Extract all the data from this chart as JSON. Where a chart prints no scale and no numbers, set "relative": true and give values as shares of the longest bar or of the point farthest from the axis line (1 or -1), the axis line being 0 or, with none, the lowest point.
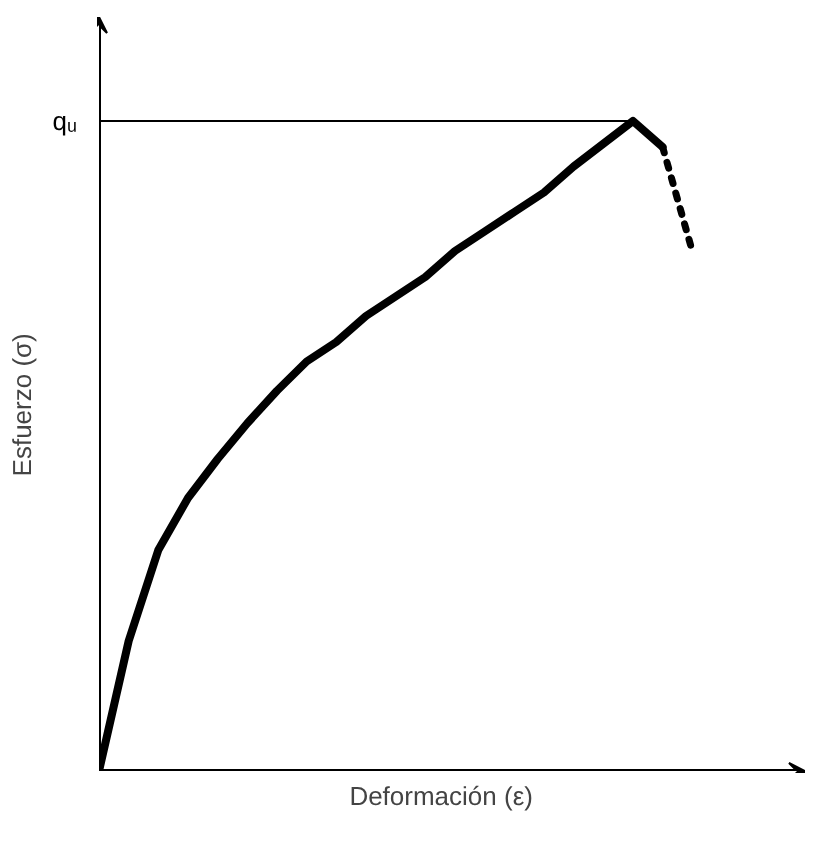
{
  "chart_data": {
    "type": "line",
    "relative": true,
    "xlabel": "Deformación    (ε)",
    "ylabel": "Esfuerzo    (σ)",
    "grid": false,
    "marker": "none",
    "categories": [
      null,
      null,
      null,
      null,
      null,
      null,
      null,
      null,
      null,
      null,
      null,
      null,
      null,
      null,
      null,
      null,
      null,
      null,
      null,
      null,
      null
    ],
    "series": [
      {
        "color": "#000000",
        "line_style": "solid",
        "values": [
          0,
          0.2,
          0.34,
          0.42,
          0.48,
          0.535,
          0.585,
          0.63,
          0.66,
          0.7,
          0.73,
          0.76,
          0.8,
          0.83,
          0.86,
          0.89,
          0.93,
          0.965,
          1,
          0.96,
          null
        ]
      },
      {
        "color": "#000000",
        "line_style": "dotted",
        "values": [
          null,
          null,
          null,
          null,
          null,
          null,
          null,
          null,
          null,
          null,
          null,
          null,
          null,
          null,
          null,
          null,
          null,
          null,
          null,
          0.96,
          0.8
        ]
      }
    ],
    "ref_lines": [
      {
        "axis": "y",
        "value": 1,
        "label": "qᵤ",
        "color": "#000000"
      }
    ]
  }
}
